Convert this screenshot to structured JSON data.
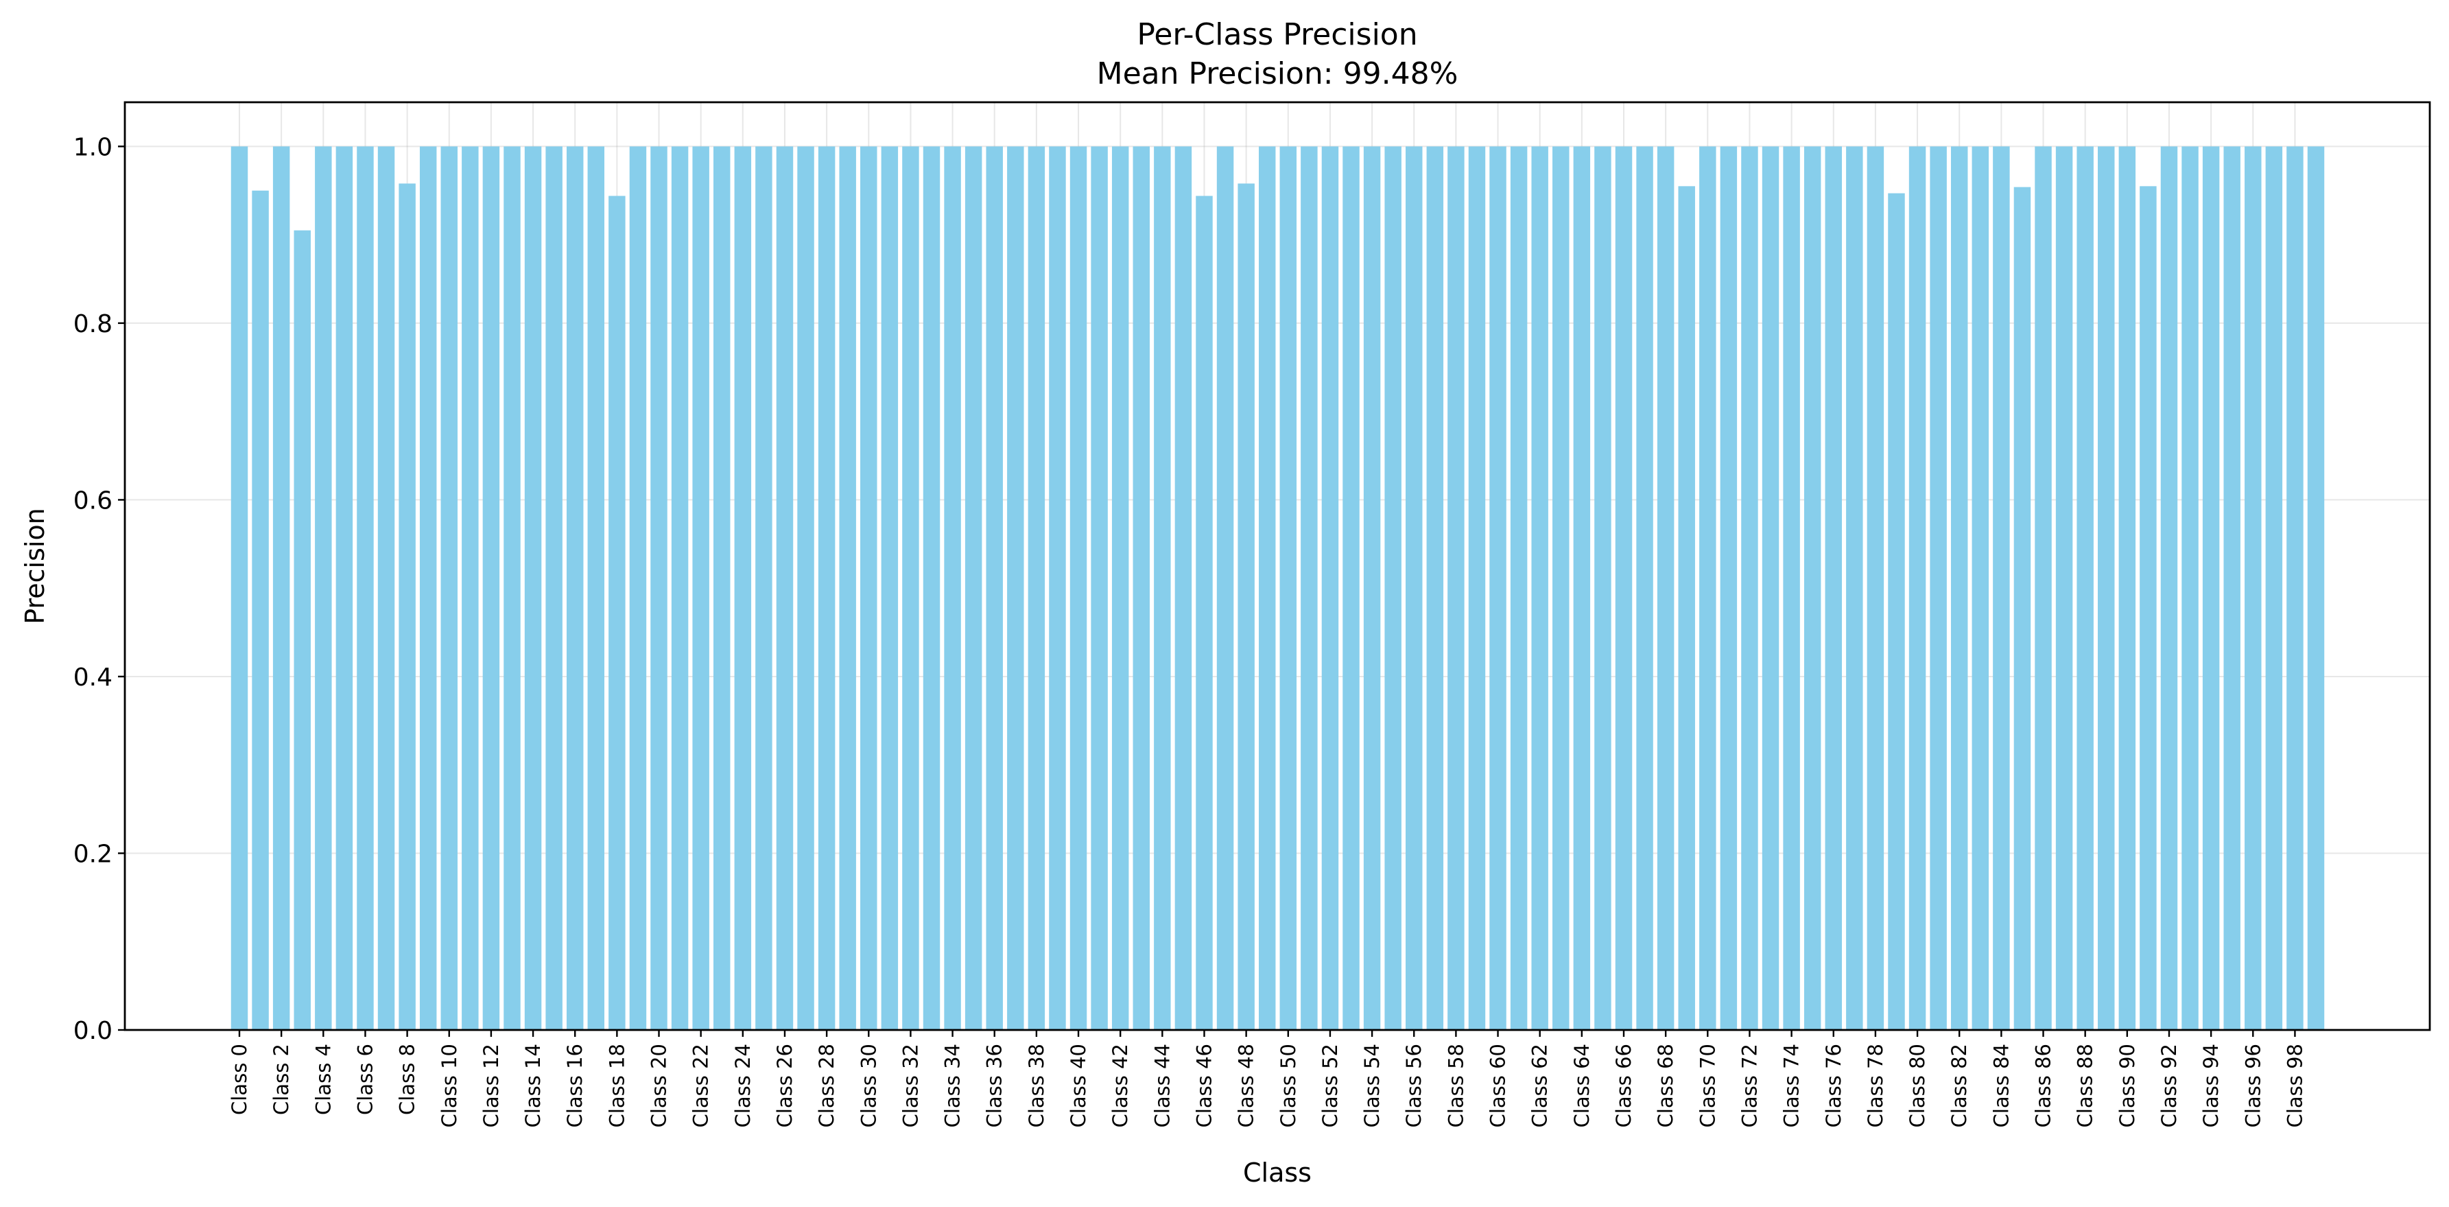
{
  "chart_data": {
    "type": "bar",
    "title": "Per-Class Precision",
    "subtitle": "Mean Precision: 99.48%",
    "xlabel": "Class",
    "ylabel": "Precision",
    "ylim": [
      0,
      1.05
    ],
    "yticks": [
      0.0,
      0.2,
      0.4,
      0.6,
      0.8,
      1.0
    ],
    "ytick_labels": [
      "0.0",
      "0.2",
      "0.4",
      "0.6",
      "0.8",
      "1.0"
    ],
    "grid": true,
    "bar_color": "#87ceeb",
    "categories": [
      "Class 0",
      "Class 1",
      "Class 2",
      "Class 3",
      "Class 4",
      "Class 5",
      "Class 6",
      "Class 7",
      "Class 8",
      "Class 9",
      "Class 10",
      "Class 11",
      "Class 12",
      "Class 13",
      "Class 14",
      "Class 15",
      "Class 16",
      "Class 17",
      "Class 18",
      "Class 19",
      "Class 20",
      "Class 21",
      "Class 22",
      "Class 23",
      "Class 24",
      "Class 25",
      "Class 26",
      "Class 27",
      "Class 28",
      "Class 29",
      "Class 30",
      "Class 31",
      "Class 32",
      "Class 33",
      "Class 34",
      "Class 35",
      "Class 36",
      "Class 37",
      "Class 38",
      "Class 39",
      "Class 40",
      "Class 41",
      "Class 42",
      "Class 43",
      "Class 44",
      "Class 45",
      "Class 46",
      "Class 47",
      "Class 48",
      "Class 49",
      "Class 50",
      "Class 51",
      "Class 52",
      "Class 53",
      "Class 54",
      "Class 55",
      "Class 56",
      "Class 57",
      "Class 58",
      "Class 59",
      "Class 60",
      "Class 61",
      "Class 62",
      "Class 63",
      "Class 64",
      "Class 65",
      "Class 66",
      "Class 67",
      "Class 68",
      "Class 69",
      "Class 70",
      "Class 71",
      "Class 72",
      "Class 73",
      "Class 74",
      "Class 75",
      "Class 76",
      "Class 77",
      "Class 78",
      "Class 79",
      "Class 80",
      "Class 81",
      "Class 82",
      "Class 83",
      "Class 84",
      "Class 85",
      "Class 86",
      "Class 87",
      "Class 88",
      "Class 89",
      "Class 90",
      "Class 91",
      "Class 92",
      "Class 93",
      "Class 94",
      "Class 95",
      "Class 96",
      "Class 97",
      "Class 98",
      "Class 99"
    ],
    "xtick_labels": [
      "Class 0",
      "Class 2",
      "Class 4",
      "Class 6",
      "Class 8",
      "Class 10",
      "Class 12",
      "Class 14",
      "Class 16",
      "Class 18",
      "Class 20",
      "Class 22",
      "Class 24",
      "Class 26",
      "Class 28",
      "Class 30",
      "Class 32",
      "Class 34",
      "Class 36",
      "Class 38",
      "Class 40",
      "Class 42",
      "Class 44",
      "Class 46",
      "Class 48",
      "Class 50",
      "Class 52",
      "Class 54",
      "Class 56",
      "Class 58",
      "Class 60",
      "Class 62",
      "Class 64",
      "Class 66",
      "Class 68",
      "Class 70",
      "Class 72",
      "Class 74",
      "Class 76",
      "Class 78",
      "Class 80",
      "Class 82",
      "Class 84",
      "Class 86",
      "Class 88",
      "Class 90",
      "Class 92",
      "Class 94",
      "Class 96",
      "Class 98"
    ],
    "values": [
      1.0,
      0.95,
      1.0,
      0.905,
      1.0,
      1.0,
      1.0,
      1.0,
      0.958,
      1.0,
      1.0,
      1.0,
      1.0,
      1.0,
      1.0,
      1.0,
      1.0,
      1.0,
      0.944,
      1.0,
      1.0,
      1.0,
      1.0,
      1.0,
      1.0,
      1.0,
      1.0,
      1.0,
      1.0,
      1.0,
      1.0,
      1.0,
      1.0,
      1.0,
      1.0,
      1.0,
      1.0,
      1.0,
      1.0,
      1.0,
      1.0,
      1.0,
      1.0,
      1.0,
      1.0,
      1.0,
      0.944,
      1.0,
      0.958,
      1.0,
      1.0,
      1.0,
      1.0,
      1.0,
      1.0,
      1.0,
      1.0,
      1.0,
      1.0,
      1.0,
      1.0,
      1.0,
      1.0,
      1.0,
      1.0,
      1.0,
      1.0,
      1.0,
      1.0,
      0.955,
      1.0,
      1.0,
      1.0,
      1.0,
      1.0,
      1.0,
      1.0,
      1.0,
      1.0,
      0.947,
      1.0,
      1.0,
      1.0,
      1.0,
      1.0,
      0.954,
      1.0,
      1.0,
      1.0,
      1.0,
      1.0,
      0.955,
      1.0,
      1.0,
      1.0,
      1.0,
      1.0,
      1.0,
      1.0,
      1.0
    ]
  }
}
